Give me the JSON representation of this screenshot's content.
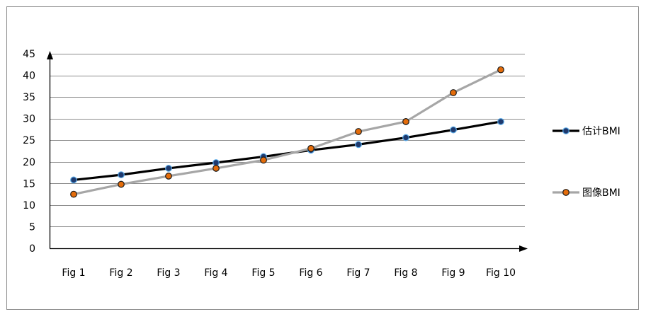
{
  "chart_data": {
    "type": "line",
    "categories": [
      "Fig 1",
      "Fig 2",
      "Fig 3",
      "Fig 4",
      "Fig 5",
      "Fig 6",
      "Fig 7",
      "Fig 8",
      "Fig 9",
      "Fig 10"
    ],
    "series": [
      {
        "name": "估计BMI",
        "values": [
          15.8,
          17.0,
          18.5,
          19.8,
          21.2,
          22.7,
          24.0,
          25.6,
          27.4,
          29.3
        ],
        "line_color": "#000000",
        "marker_fill": "#1f3a6e",
        "marker_edge": "#5aa9e6"
      },
      {
        "name": "图像BMI",
        "values": [
          12.5,
          14.8,
          16.7,
          18.5,
          20.4,
          23.1,
          27.0,
          29.3,
          36.0,
          41.3
        ],
        "line_color": "#a6a6a6",
        "marker_fill": "#e46c0a",
        "marker_edge": "#1a1a1a"
      }
    ],
    "ylim": [
      0,
      45
    ],
    "yticks": [
      0,
      5,
      10,
      15,
      20,
      25,
      30,
      35,
      40,
      45
    ],
    "grid": true,
    "legend_position": "right"
  }
}
